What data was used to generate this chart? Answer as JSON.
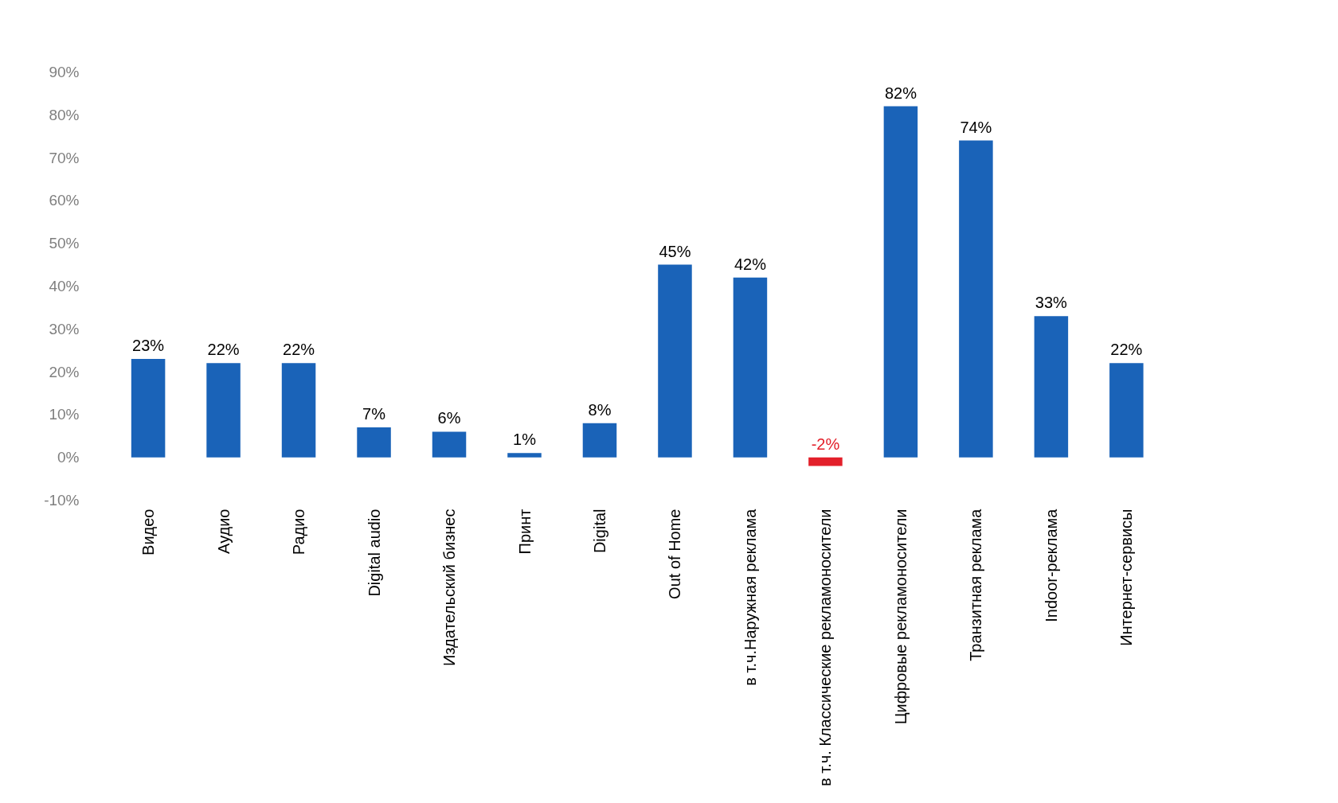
{
  "chart_data": {
    "type": "bar",
    "categories": [
      "Видео",
      "Аудио",
      "Радио",
      "Digital audio",
      "Издательский бизнес",
      "Принт",
      "Digital",
      "Out of Home",
      "в т.ч.Наружная реклама",
      "в т.ч. Классические рекламоносители",
      "Цифровые рекламоносители",
      "Транзитная реклама",
      "Indoor-реклама",
      "Интернет-сервисы"
    ],
    "values": [
      23,
      22,
      22,
      7,
      6,
      1,
      8,
      45,
      42,
      -2,
      82,
      74,
      33,
      22
    ],
    "colors": [
      "#1a63b8",
      "#1a63b8",
      "#1a63b8",
      "#1a63b8",
      "#1a63b8",
      "#1a63b8",
      "#1a63b8",
      "#1a63b8",
      "#1a63b8",
      "#e3202a",
      "#1a63b8",
      "#1a63b8",
      "#1a63b8",
      "#1a63b8"
    ],
    "value_labels": [
      "23%",
      "22%",
      "22%",
      "7%",
      "6%",
      "1%",
      "8%",
      "45%",
      "42%",
      "-2%",
      "82%",
      "74%",
      "33%",
      "22%"
    ],
    "ylim": [
      -10,
      90
    ],
    "yticks": [
      {
        "value": -10,
        "label": "-10%"
      },
      {
        "value": 0,
        "label": "0%"
      },
      {
        "value": 10,
        "label": "10%"
      },
      {
        "value": 20,
        "label": "20%"
      },
      {
        "value": 30,
        "label": "30%"
      },
      {
        "value": 40,
        "label": "40%"
      },
      {
        "value": 50,
        "label": "50%"
      },
      {
        "value": 60,
        "label": "60%"
      },
      {
        "value": 70,
        "label": "70%"
      },
      {
        "value": 80,
        "label": "80%"
      },
      {
        "value": 90,
        "label": "90%"
      }
    ],
    "grid": false
  }
}
